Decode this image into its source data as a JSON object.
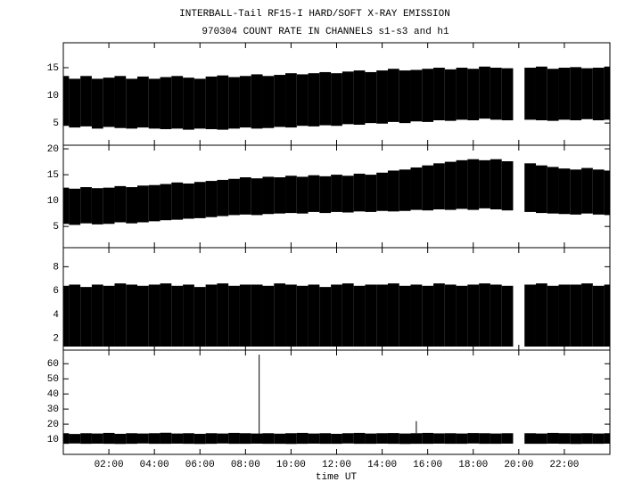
{
  "chart_data": {
    "type": "band",
    "title": "INTERBALL-Tail RF15-I HARD/SOFT X-RAY EMISSION",
    "subtitle": "970304  COUNT RATE IN CHANNELS s1-s3 and h1",
    "xlabel": "time UT",
    "color": "#000000",
    "xlim": [
      0,
      24
    ],
    "xticks": [
      {
        "value": 2,
        "label": "02:00"
      },
      {
        "value": 4,
        "label": "04:00"
      },
      {
        "value": 6,
        "label": "06:00"
      },
      {
        "value": 8,
        "label": "08:00"
      },
      {
        "value": 10,
        "label": "10:00"
      },
      {
        "value": 12,
        "label": "12:00"
      },
      {
        "value": 14,
        "label": "14:00"
      },
      {
        "value": 16,
        "label": "16:00"
      },
      {
        "value": 18,
        "label": "18:00"
      },
      {
        "value": 20,
        "label": "20:00"
      },
      {
        "value": 22,
        "label": "22:00"
      }
    ],
    "x": [
      0,
      0.5,
      1,
      1.5,
      2,
      2.5,
      3,
      3.5,
      4,
      4.5,
      5,
      5.5,
      6,
      6.5,
      7,
      7.5,
      8,
      8.5,
      9,
      9.5,
      10,
      10.5,
      11,
      11.5,
      12,
      12.5,
      13,
      13.5,
      14,
      14.5,
      15,
      15.5,
      16,
      16.5,
      17,
      17.5,
      18,
      18.5,
      19,
      19.5,
      20,
      20.5,
      21,
      21.5,
      22,
      22.5,
      23,
      23.5,
      24
    ],
    "panels": [
      {
        "ylim": [
          1,
          19.5
        ],
        "yticks": [
          5,
          10,
          15
        ],
        "upper": [
          13.5,
          13,
          13.5,
          13,
          13.2,
          13.5,
          13,
          13.4,
          13,
          13.3,
          13.5,
          13.2,
          13,
          13.4,
          13.6,
          13.3,
          13.5,
          13.8,
          13.5,
          13.7,
          14,
          13.8,
          14,
          14.2,
          14,
          14.3,
          14.5,
          14.2,
          14.5,
          14.8,
          14.5,
          14.6,
          14.8,
          15,
          14.7,
          15,
          14.8,
          15.2,
          15,
          14.9,
          null,
          15,
          15.2,
          14.8,
          15,
          15.1,
          14.9,
          15,
          15.2
        ],
        "lower": [
          4.5,
          4.2,
          4.4,
          4,
          4.3,
          4.1,
          4,
          4.2,
          4,
          3.9,
          4,
          3.8,
          4,
          3.9,
          3.8,
          4,
          4.2,
          4,
          4.1,
          4.3,
          4.2,
          4.5,
          4.4,
          4.6,
          4.5,
          4.8,
          4.7,
          5,
          4.9,
          5.2,
          5,
          5.3,
          5.2,
          5.5,
          5.4,
          5.6,
          5.5,
          5.8,
          5.6,
          5.5,
          null,
          5.6,
          5.5,
          5.4,
          5.6,
          5.5,
          5.7,
          5.5,
          5.6
        ]
      },
      {
        "ylim": [
          0.9,
          20.7
        ],
        "yticks": [
          5,
          10,
          15,
          20
        ],
        "upper": [
          12.5,
          12.3,
          12.6,
          12.4,
          12.5,
          12.8,
          12.6,
          12.9,
          13,
          13.2,
          13.5,
          13.3,
          13.6,
          13.8,
          14,
          14.2,
          14.5,
          14.3,
          14.6,
          14.5,
          14.8,
          14.6,
          14.9,
          14.7,
          15,
          14.8,
          15.2,
          15,
          15.4,
          15.8,
          16,
          16.4,
          16.8,
          17.2,
          17.5,
          17.8,
          18,
          17.8,
          18,
          17.6,
          null,
          17.2,
          16.8,
          16.5,
          16.2,
          16,
          16.3,
          16,
          15.8
        ],
        "lower": [
          5.5,
          5.3,
          5.6,
          5.4,
          5.5,
          5.8,
          5.6,
          5.8,
          6,
          6.2,
          6.3,
          6.5,
          6.6,
          6.8,
          7,
          7.2,
          7.3,
          7.2,
          7.4,
          7.5,
          7.6,
          7.5,
          7.8,
          7.6,
          7.8,
          7.7,
          7.9,
          7.8,
          8,
          7.9,
          8,
          8.2,
          8.1,
          8.3,
          8.2,
          8.4,
          8.2,
          8.5,
          8.3,
          8.1,
          null,
          7.8,
          7.6,
          7.5,
          7.4,
          7.3,
          7.5,
          7.3,
          7.2
        ]
      },
      {
        "ylim": [
          1,
          9.6
        ],
        "yticks": [
          2,
          4,
          6,
          8
        ],
        "upper": [
          6.4,
          6.5,
          6.3,
          6.5,
          6.4,
          6.6,
          6.5,
          6.4,
          6.5,
          6.6,
          6.4,
          6.5,
          6.3,
          6.5,
          6.6,
          6.4,
          6.5,
          6.5,
          6.4,
          6.6,
          6.5,
          6.4,
          6.5,
          6.3,
          6.5,
          6.6,
          6.4,
          6.5,
          6.5,
          6.6,
          6.4,
          6.5,
          6.4,
          6.6,
          6.5,
          6.4,
          6.5,
          6.6,
          6.5,
          6.4,
          null,
          6.5,
          6.6,
          6.4,
          6.5,
          6.5,
          6.6,
          6.4,
          6.5
        ],
        "lower": [
          1.3,
          1.3,
          1.3,
          1.3,
          1.3,
          1.3,
          1.3,
          1.3,
          1.3,
          1.3,
          1.3,
          1.3,
          1.3,
          1.3,
          1.3,
          1.3,
          1.3,
          1.3,
          1.3,
          1.3,
          1.3,
          1.3,
          1.3,
          1.3,
          1.3,
          1.3,
          1.3,
          1.3,
          1.3,
          1.3,
          1.3,
          1.3,
          1.3,
          1.3,
          1.3,
          1.3,
          1.3,
          1.3,
          1.3,
          1.3,
          null,
          1.3,
          1.3,
          1.3,
          1.3,
          1.3,
          1.3,
          1.3,
          1.3
        ]
      },
      {
        "ylim": [
          0,
          69
        ],
        "yticks": [
          10,
          20,
          30,
          40,
          50,
          60
        ],
        "upper": [
          14,
          13.5,
          14,
          13.8,
          14.2,
          13.6,
          14,
          13.8,
          14,
          14.3,
          13.8,
          14,
          13.6,
          14,
          13.8,
          14.2,
          14,
          13.8,
          14,
          13.7,
          14,
          14.2,
          13.8,
          14,
          13.6,
          14,
          14.2,
          13.8,
          14,
          14.1,
          13.8,
          14,
          14.2,
          13.9,
          14,
          13.8,
          14.1,
          14,
          13.8,
          14,
          null,
          14,
          13.8,
          14.2,
          14,
          13.9,
          14,
          13.8,
          14
        ],
        "lower": [
          7,
          7.2,
          7,
          7.1,
          7,
          6.9,
          7,
          7.2,
          7,
          7,
          7.1,
          7,
          6.9,
          7,
          7.2,
          7,
          7,
          7.1,
          7,
          7,
          6.9,
          7,
          7.1,
          7,
          7,
          7.2,
          7,
          7,
          7.1,
          7,
          6.9,
          7,
          7,
          7.1,
          7,
          7,
          7.2,
          7,
          7,
          7.1,
          null,
          7,
          7,
          7.1,
          7,
          6.9,
          7,
          7,
          7.1
        ],
        "spikes": [
          {
            "x": 8.6,
            "value": 66
          },
          {
            "x": 15.5,
            "value": 22
          }
        ]
      }
    ]
  }
}
